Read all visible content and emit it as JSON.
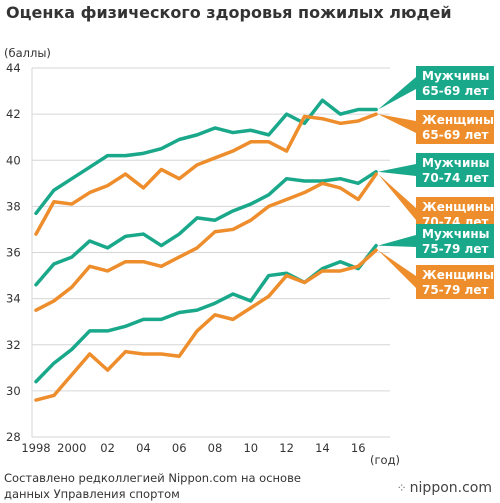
{
  "chart_data": {
    "type": "line",
    "title": "Оценка физического здоровья пожилых людей",
    "ylabel": "(баллы)",
    "xlabel": "(год)",
    "ylim": [
      28,
      44
    ],
    "yticks": [
      28,
      30,
      32,
      34,
      36,
      38,
      40,
      42,
      44
    ],
    "x": [
      1998,
      1999,
      2000,
      2001,
      2002,
      2003,
      2004,
      2005,
      2006,
      2007,
      2008,
      2009,
      2010,
      2011,
      2012,
      2013,
      2014,
      2015,
      2016,
      2017
    ],
    "xticks": [
      {
        "x": 1998,
        "label": "1998"
      },
      {
        "x": 2000,
        "label": "2000"
      },
      {
        "x": 2002,
        "label": "02"
      },
      {
        "x": 2004,
        "label": "04"
      },
      {
        "x": 2006,
        "label": "06"
      },
      {
        "x": 2008,
        "label": "08"
      },
      {
        "x": 2010,
        "label": "10"
      },
      {
        "x": 2012,
        "label": "12"
      },
      {
        "x": 2014,
        "label": "14"
      },
      {
        "x": 2016,
        "label": "16"
      }
    ],
    "grid": true,
    "legend": "right",
    "colors": {
      "men": "#1aa88a",
      "women": "#ee8d2c"
    },
    "series": [
      {
        "name": "Мужчины 65-69 лет",
        "label_lines": [
          "Мужчины",
          "65-69 лет"
        ],
        "group": "men",
        "values": [
          37.7,
          38.7,
          39.2,
          39.7,
          40.2,
          40.2,
          40.3,
          40.5,
          40.9,
          41.1,
          41.4,
          41.2,
          41.3,
          41.1,
          42.0,
          41.6,
          42.6,
          42.0,
          42.2,
          42.2
        ]
      },
      {
        "name": "Женщины 65-69 лет",
        "label_lines": [
          "Женщины",
          "65-69 лет"
        ],
        "group": "women",
        "values": [
          36.8,
          38.2,
          38.1,
          38.6,
          38.9,
          39.4,
          38.8,
          39.6,
          39.2,
          39.8,
          40.1,
          40.4,
          40.8,
          40.8,
          40.4,
          41.9,
          41.8,
          41.6,
          41.7,
          42.0
        ]
      },
      {
        "name": "Мужчины 70-74 лет",
        "label_lines": [
          "Мужчины",
          "70-74 лет"
        ],
        "group": "men",
        "values": [
          34.6,
          35.5,
          35.8,
          36.5,
          36.2,
          36.7,
          36.8,
          36.3,
          36.8,
          37.5,
          37.4,
          37.8,
          38.1,
          38.5,
          39.2,
          39.1,
          39.1,
          39.2,
          39.0,
          39.5
        ]
      },
      {
        "name": "Женщины 70-74 лет",
        "label_lines": [
          "Женщины",
          "70-74 лет"
        ],
        "group": "women",
        "values": [
          33.5,
          33.9,
          34.5,
          35.4,
          35.2,
          35.6,
          35.6,
          35.4,
          35.8,
          36.2,
          36.9,
          37.0,
          37.4,
          38.0,
          38.3,
          38.6,
          39.0,
          38.8,
          38.3,
          39.4
        ]
      },
      {
        "name": "Мужчины 75-79 лет",
        "label_lines": [
          "Мужчины",
          "75-79 лет"
        ],
        "group": "men",
        "values": [
          30.4,
          31.2,
          31.8,
          32.6,
          32.6,
          32.8,
          33.1,
          33.1,
          33.4,
          33.5,
          33.8,
          34.2,
          33.9,
          35.0,
          35.1,
          34.7,
          35.3,
          35.6,
          35.3,
          36.3
        ]
      },
      {
        "name": "Женщины 75-79 лет",
        "label_lines": [
          "Женщины",
          "75-79 лет"
        ],
        "group": "women",
        "values": [
          29.6,
          29.8,
          30.7,
          31.6,
          30.9,
          31.7,
          31.6,
          31.6,
          31.5,
          32.6,
          33.3,
          33.1,
          33.6,
          34.1,
          35.0,
          34.7,
          35.2,
          35.2,
          35.4,
          36.1
        ]
      }
    ]
  },
  "footer": {
    "source_line1": "Составлено редколлегией Nippon.com на основе",
    "source_line2": "данных Управления спортом",
    "brand": "nippon.com"
  }
}
